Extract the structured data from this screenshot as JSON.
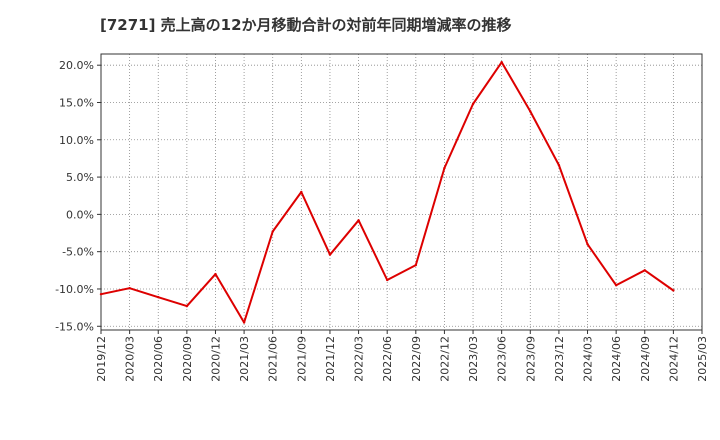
{
  "chart_data": {
    "type": "line",
    "title": "[7271]  売上高の12か月移動合計の対前年同期増減率の推移",
    "xlabel": "",
    "ylabel": "",
    "x": [
      "2019/12",
      "2020/03",
      "2020/06",
      "2020/09",
      "2020/12",
      "2021/03",
      "2021/06",
      "2021/09",
      "2021/12",
      "2022/03",
      "2022/06",
      "2022/09",
      "2022/12",
      "2023/03",
      "2023/06",
      "2023/09",
      "2023/12",
      "2024/03",
      "2024/06",
      "2024/09",
      "2024/12",
      "2025/03"
    ],
    "series": [
      {
        "name": "対前年同期増減率",
        "color": "#dd0000",
        "values": [
          -10.7,
          -9.9,
          -11.1,
          -12.3,
          -8.0,
          -14.5,
          -2.3,
          3.0,
          -5.4,
          -0.8,
          -8.8,
          -6.8,
          6.2,
          14.8,
          20.4,
          13.8,
          6.6,
          -4.0,
          -9.5,
          -7.5,
          -10.2,
          null
        ]
      }
    ],
    "ylim": [
      -15.5,
      21.5
    ],
    "yticks": [
      -15,
      -10,
      -5,
      0,
      5,
      10,
      15,
      20
    ],
    "ytick_labels": [
      "-15.0%",
      "-10.0%",
      "-5.0%",
      "0.0%",
      "5.0%",
      "10.0%",
      "15.0%",
      "20.0%"
    ],
    "grid": true,
    "legend": "none"
  }
}
